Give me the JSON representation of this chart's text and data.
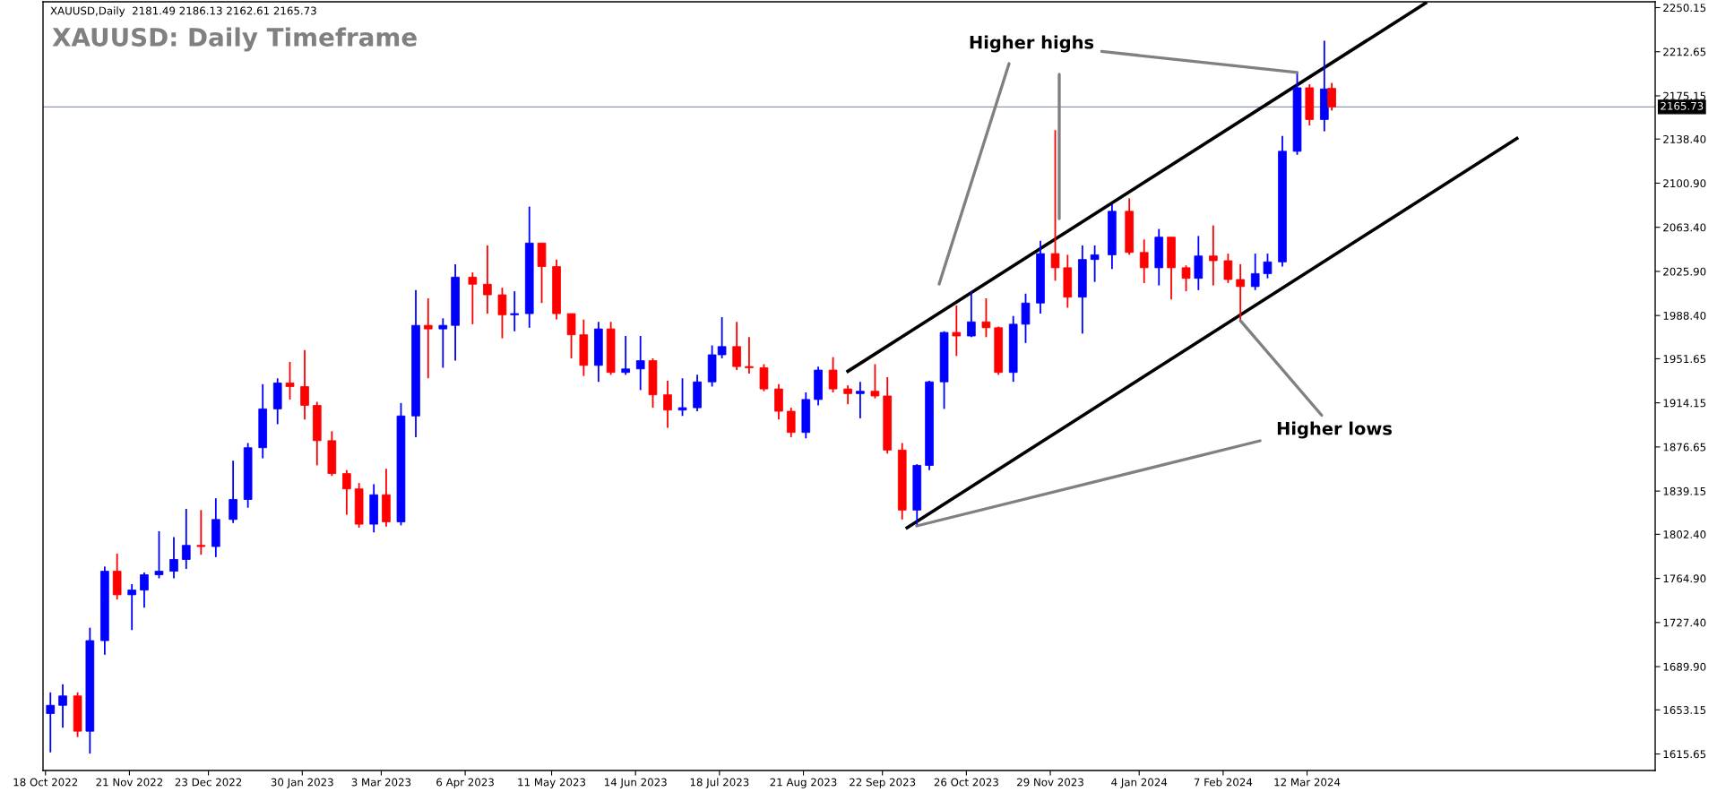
{
  "chart_data": {
    "type": "candlestick",
    "title": "XAUUSD: Daily Timeframe",
    "subtitle": "XAUUSD,Daily  2181.49 2186.13 2162.61 2165.73",
    "annotations": [
      {
        "text": "Higher highs",
        "x": "2024-03-08",
        "y": 2195
      },
      {
        "text": "Higher lows",
        "x": "2024-02-14",
        "y": 1984
      }
    ],
    "x": [
      "2022-10-20",
      "2022-10-25",
      "2022-10-31",
      "2022-11-05",
      "2022-11-11",
      "2022-11-16",
      "2022-11-22",
      "2022-11-27",
      "2022-12-03",
      "2022-12-09",
      "2022-12-14",
      "2022-12-20",
      "2022-12-26",
      "2023-01-02",
      "2023-01-08",
      "2023-01-14",
      "2023-01-20",
      "2023-01-25",
      "2023-01-31",
      "2023-02-05",
      "2023-02-11",
      "2023-02-17",
      "2023-02-22",
      "2023-02-28",
      "2023-03-05",
      "2023-03-11",
      "2023-03-17",
      "2023-03-22",
      "2023-03-28",
      "2023-04-02",
      "2023-04-09",
      "2023-04-15",
      "2023-04-21",
      "2023-04-26",
      "2023-05-02",
      "2023-05-07",
      "2023-05-13",
      "2023-05-19",
      "2023-05-24",
      "2023-05-30",
      "2023-06-04",
      "2023-06-10",
      "2023-06-16",
      "2023-06-21",
      "2023-06-27",
      "2023-07-03",
      "2023-07-09",
      "2023-07-15",
      "2023-07-19",
      "2023-07-25",
      "2023-07-30",
      "2023-08-05",
      "2023-08-11",
      "2023-08-16",
      "2023-08-22",
      "2023-08-27",
      "2023-09-02",
      "2023-09-08",
      "2023-09-13",
      "2023-09-19",
      "2023-09-24",
      "2023-09-30",
      "2023-10-06",
      "2023-10-11",
      "2023-10-17",
      "2023-10-22",
      "2023-10-28",
      "2023-11-03",
      "2023-11-08",
      "2023-11-14",
      "2023-11-19",
      "2023-11-25",
      "2023-12-01",
      "2023-12-06",
      "2023-12-12",
      "2023-12-17",
      "2023-12-24",
      "2023-12-31",
      "2024-01-06",
      "2024-01-12",
      "2024-01-17",
      "2024-01-23",
      "2024-01-28",
      "2024-02-03",
      "2024-02-09",
      "2024-02-14",
      "2024-02-20",
      "2024-02-25",
      "2024-03-02",
      "2024-03-08",
      "2024-03-13",
      "2024-03-19",
      "2024-03-22"
    ],
    "ohlc": [
      [
        1650,
        1668,
        1617,
        1657
      ],
      [
        1657,
        1675,
        1638,
        1665
      ],
      [
        1665,
        1668,
        1630,
        1635
      ],
      [
        1635,
        1723,
        1616,
        1712
      ],
      [
        1712,
        1775,
        1700,
        1771
      ],
      [
        1771,
        1786,
        1747,
        1751
      ],
      [
        1751,
        1760,
        1721,
        1755
      ],
      [
        1755,
        1770,
        1740,
        1768
      ],
      [
        1768,
        1805,
        1765,
        1771
      ],
      [
        1771,
        1800,
        1765,
        1781
      ],
      [
        1781,
        1824,
        1773,
        1793
      ],
      [
        1793,
        1823,
        1785,
        1792
      ],
      [
        1792,
        1833,
        1783,
        1815
      ],
      [
        1815,
        1865,
        1812,
        1832
      ],
      [
        1832,
        1880,
        1825,
        1876
      ],
      [
        1876,
        1930,
        1867,
        1909
      ],
      [
        1909,
        1935,
        1896,
        1931
      ],
      [
        1931,
        1949,
        1917,
        1928
      ],
      [
        1928,
        1959,
        1900,
        1912
      ],
      [
        1912,
        1915,
        1861,
        1882
      ],
      [
        1882,
        1890,
        1852,
        1854
      ],
      [
        1854,
        1857,
        1819,
        1841
      ],
      [
        1841,
        1846,
        1808,
        1811
      ],
      [
        1811,
        1845,
        1804,
        1836
      ],
      [
        1836,
        1858,
        1809,
        1813
      ],
      [
        1813,
        1914,
        1810,
        1903
      ],
      [
        1903,
        2010,
        1885,
        1980
      ],
      [
        1980,
        2003,
        1935,
        1977
      ],
      [
        1977,
        1986,
        1944,
        1980
      ],
      [
        1980,
        2032,
        1950,
        2021
      ],
      [
        2021,
        2025,
        1981,
        2015
      ],
      [
        2015,
        2048,
        1990,
        2006
      ],
      [
        2006,
        2012,
        1969,
        1989
      ],
      [
        1989,
        2009,
        1975,
        1990
      ],
      [
        1990,
        2081,
        1978,
        2050
      ],
      [
        2050,
        2050,
        1999,
        2030
      ],
      [
        2030,
        2036,
        1985,
        1990
      ],
      [
        1990,
        1990,
        1952,
        1972
      ],
      [
        1972,
        1985,
        1937,
        1946
      ],
      [
        1946,
        1983,
        1932,
        1977
      ],
      [
        1977,
        1983,
        1938,
        1940
      ],
      [
        1940,
        1971,
        1938,
        1943
      ],
      [
        1943,
        1971,
        1925,
        1950
      ],
      [
        1950,
        1952,
        1910,
        1921
      ],
      [
        1921,
        1933,
        1893,
        1908
      ],
      [
        1908,
        1935,
        1903,
        1910
      ],
      [
        1910,
        1938,
        1907,
        1932
      ],
      [
        1932,
        1963,
        1928,
        1955
      ],
      [
        1955,
        1987,
        1952,
        1962
      ],
      [
        1962,
        1983,
        1942,
        1945
      ],
      [
        1945,
        1970,
        1939,
        1944
      ],
      [
        1944,
        1947,
        1924,
        1926
      ],
      [
        1926,
        1930,
        1900,
        1907
      ],
      [
        1907,
        1910,
        1885,
        1889
      ],
      [
        1889,
        1923,
        1884,
        1917
      ],
      [
        1917,
        1945,
        1912,
        1942
      ],
      [
        1942,
        1953,
        1923,
        1926
      ],
      [
        1926,
        1929,
        1913,
        1922
      ],
      [
        1922,
        1932,
        1901,
        1924
      ],
      [
        1924,
        1947,
        1918,
        1920
      ],
      [
        1920,
        1936,
        1871,
        1874
      ],
      [
        1874,
        1880,
        1815,
        1823
      ],
      [
        1823,
        1862,
        1810,
        1861
      ],
      [
        1861,
        1933,
        1857,
        1932
      ],
      [
        1932,
        1975,
        1909,
        1974
      ],
      [
        1974,
        1997,
        1954,
        1971
      ],
      [
        1971,
        2009,
        1970,
        1983
      ],
      [
        1983,
        2003,
        1970,
        1978
      ],
      [
        1978,
        1979,
        1938,
        1940
      ],
      [
        1940,
        1988,
        1932,
        1981
      ],
      [
        1981,
        2007,
        1965,
        1999
      ],
      [
        1999,
        2052,
        1990,
        2041
      ],
      [
        2041,
        2146,
        2018,
        2029
      ],
      [
        2029,
        2040,
        1995,
        2004
      ],
      [
        2004,
        2048,
        1973,
        2036
      ],
      [
        2036,
        2048,
        2017,
        2040
      ],
      [
        2040,
        2083,
        2028,
        2077
      ],
      [
        2077,
        2088,
        2040,
        2042
      ],
      [
        2042,
        2053,
        2016,
        2029
      ],
      [
        2029,
        2062,
        2014,
        2055
      ],
      [
        2055,
        2055,
        2002,
        2029
      ],
      [
        2029,
        2031,
        2009,
        2020
      ],
      [
        2020,
        2056,
        2010,
        2039
      ],
      [
        2039,
        2065,
        2014,
        2035
      ],
      [
        2035,
        2041,
        2016,
        2019
      ],
      [
        2019,
        2032,
        1984,
        2013
      ],
      [
        2013,
        2041,
        2010,
        2024
      ],
      [
        2024,
        2041,
        2020,
        2034
      ],
      [
        2034,
        2141,
        2030,
        2128
      ],
      [
        2128,
        2195,
        2125,
        2182
      ],
      [
        2182,
        2185,
        2150,
        2155
      ],
      [
        2155,
        2222,
        2145,
        2181
      ],
      [
        2181.49,
        2186.13,
        2162.61,
        2165.73
      ]
    ],
    "colors": [
      "#0000ff",
      "#0000ff",
      "#ff0000",
      "#0000ff",
      "#0000ff",
      "#ff0000",
      "#0000ff",
      "#0000ff",
      "#0000ff",
      "#0000ff",
      "#0000ff",
      "#ff0000",
      "#0000ff",
      "#0000ff",
      "#0000ff",
      "#0000ff",
      "#0000ff",
      "#ff0000",
      "#ff0000",
      "#ff0000",
      "#ff0000",
      "#ff0000",
      "#ff0000",
      "#0000ff",
      "#ff0000",
      "#0000ff",
      "#0000ff",
      "#ff0000",
      "#0000ff",
      "#0000ff",
      "#ff0000",
      "#ff0000",
      "#ff0000",
      "#0000ff",
      "#0000ff",
      "#ff0000",
      "#ff0000",
      "#ff0000",
      "#ff0000",
      "#0000ff",
      "#ff0000",
      "#0000ff",
      "#0000ff",
      "#ff0000",
      "#ff0000",
      "#0000ff",
      "#0000ff",
      "#0000ff",
      "#0000ff",
      "#ff0000",
      "#ff0000",
      "#ff0000",
      "#ff0000",
      "#ff0000",
      "#0000ff",
      "#0000ff",
      "#ff0000",
      "#ff0000",
      "#0000ff",
      "#ff0000",
      "#ff0000",
      "#ff0000",
      "#0000ff",
      "#0000ff",
      "#0000ff",
      "#ff0000",
      "#0000ff",
      "#ff0000",
      "#ff0000",
      "#0000ff",
      "#0000ff",
      "#0000ff",
      "#ff0000",
      "#ff0000",
      "#0000ff",
      "#0000ff",
      "#0000ff",
      "#ff0000",
      "#ff0000",
      "#0000ff",
      "#ff0000",
      "#ff0000",
      "#0000ff",
      "#ff0000",
      "#ff0000",
      "#ff0000",
      "#0000ff",
      "#0000ff",
      "#0000ff",
      "#0000ff",
      "#ff0000",
      "#0000ff",
      "#ff0000"
    ],
    "series": [
      {
        "type": "line",
        "color": "#000000",
        "x": [
          "2023-09-08",
          "2024-04-29"
        ],
        "values": [
          1941,
          2254
        ]
      },
      {
        "type": "line",
        "color": "#000000",
        "x": [
          "2023-10-02",
          "2024-06-05"
        ],
        "values": [
          1808,
          2139
        ]
      }
    ],
    "ref_lines": [
      {
        "axis": "y",
        "value": 2165.73,
        "label": "2165.73",
        "color": "#8c9cac"
      }
    ],
    "xlim": [
      "2022-10-17",
      "2024-07-31"
    ],
    "xticks": [
      {
        "value": "2022-10-18",
        "label": "18 Oct 2022"
      },
      {
        "value": "2022-11-21",
        "label": "21 Nov 2022"
      },
      {
        "value": "2022-12-23",
        "label": "23 Dec 2022"
      },
      {
        "value": "2023-01-30",
        "label": "30 Jan 2023"
      },
      {
        "value": "2023-03-03",
        "label": "3 Mar 2023"
      },
      {
        "value": "2023-04-06",
        "label": "6 Apr 2023"
      },
      {
        "value": "2023-05-11",
        "label": "11 May 2023"
      },
      {
        "value": "2023-06-14",
        "label": "14 Jun 2023"
      },
      {
        "value": "2023-07-18",
        "label": "18 Jul 2023"
      },
      {
        "value": "2023-08-21",
        "label": "21 Aug 2023"
      },
      {
        "value": "2023-09-22",
        "label": "22 Sep 2023"
      },
      {
        "value": "2023-10-26",
        "label": "26 Oct 2023"
      },
      {
        "value": "2023-11-29",
        "label": "29 Nov 2023"
      },
      {
        "value": "2024-01-04",
        "label": "4 Jan 2024"
      },
      {
        "value": "2024-02-07",
        "label": "7 Feb 2024"
      },
      {
        "value": "2024-03-12",
        "label": "12 Mar 2024"
      }
    ],
    "ylim": [
      1601.6,
      2255.1
    ],
    "yticks": [
      1615.65,
      1653.15,
      {
        "value": 1689.9,
        "label": "1689.90"
      },
      {
        "value": 1727.4,
        "label": "1727.40"
      },
      {
        "value": 1764.9,
        "label": "1764.90"
      },
      {
        "value": 1802.4,
        "label": "1802.40"
      },
      1839.15,
      1876.65,
      1914.15,
      1951.65,
      {
        "value": 1988.4,
        "label": "1988.40"
      },
      {
        "value": 2025.9,
        "label": "2025.90"
      },
      {
        "value": 2063.4,
        "label": "2063.40"
      },
      {
        "value": 2100.9,
        "label": "2100.90"
      },
      {
        "value": 2138.4,
        "label": "2138.40"
      },
      2175.15,
      2212.65,
      2250.15
    ]
  }
}
